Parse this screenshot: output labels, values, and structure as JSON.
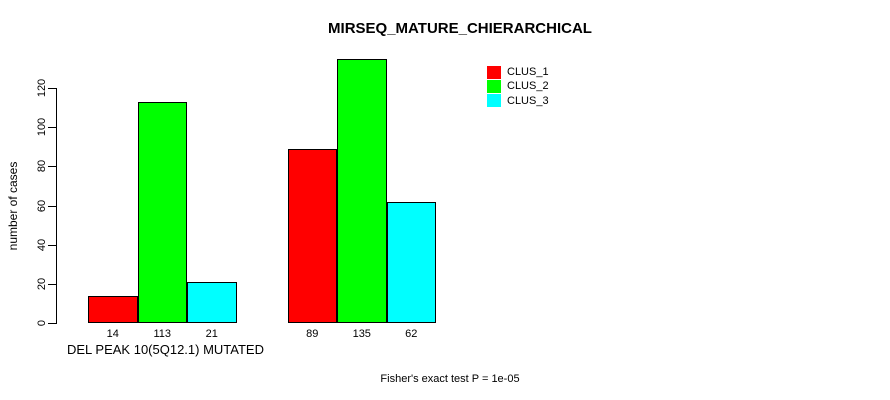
{
  "chart": {
    "title": "MIRSEQ_MATURE_CHIERARCHICAL",
    "ylabel": "number of cases",
    "group_label": "DEL PEAK 10(5Q12.1) MUTATED",
    "footer": "Fisher's exact test P = 1e-05"
  },
  "chart_data": {
    "type": "bar",
    "title": "MIRSEQ_MATURE_CHIERARCHICAL",
    "ylabel": "number of cases",
    "xlabel": "",
    "categories": [
      "DEL PEAK 10(5Q12.1) MUTATED",
      ""
    ],
    "series": [
      {
        "name": "CLUS_1",
        "color": "#ff0000",
        "values": [
          14,
          89
        ]
      },
      {
        "name": "CLUS_2",
        "color": "#00ff00",
        "values": [
          113,
          135
        ]
      },
      {
        "name": "CLUS_3",
        "color": "#00ffff",
        "values": [
          21,
          62
        ]
      }
    ],
    "bar_value_labels": [
      [
        14,
        113,
        21
      ],
      [
        89,
        135,
        62
      ]
    ],
    "yticks": [
      0,
      20,
      40,
      60,
      80,
      100,
      120
    ],
    "ylim": [
      0,
      135
    ],
    "grid": false,
    "legend_position": "top-right",
    "legend_entries": [
      "CLUS_1",
      "CLUS_2",
      "CLUS_3"
    ],
    "annotation": "Fisher's exact test P = 1e-05"
  }
}
